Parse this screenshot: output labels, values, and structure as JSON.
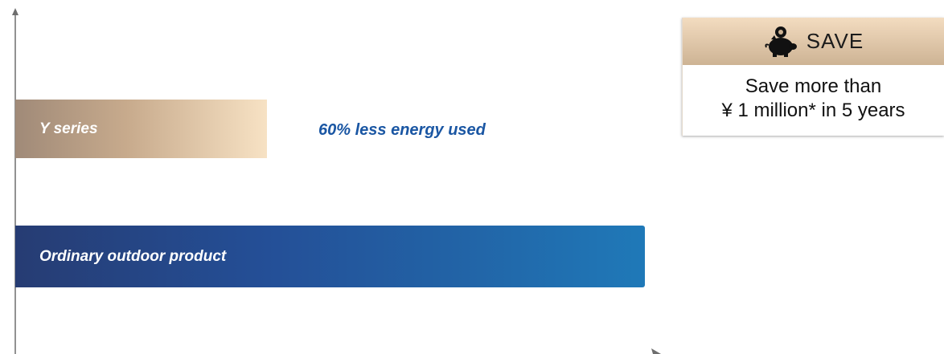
{
  "chart_data": {
    "type": "bar",
    "orientation": "horizontal",
    "categories": [
      "Y series",
      "Ordinary outdoor product"
    ],
    "values": [
      40,
      100
    ],
    "value_unit": "relative energy used (%)",
    "xlim": [
      0,
      100
    ],
    "axis_ticks": "none",
    "annotation": "60% less energy used",
    "colors": {
      "y_series_start": "#a08a78",
      "y_series_end": "#f7e2c4",
      "ordinary_start": "#263c73",
      "ordinary_end": "#1f79b8",
      "annotation": "#1a56a3",
      "axis": "#666666"
    }
  },
  "save_card": {
    "icon": "piggy-bank-icon",
    "title": "SAVE",
    "line1": "Save more than",
    "line2": "¥ 1 million* in 5 years"
  }
}
